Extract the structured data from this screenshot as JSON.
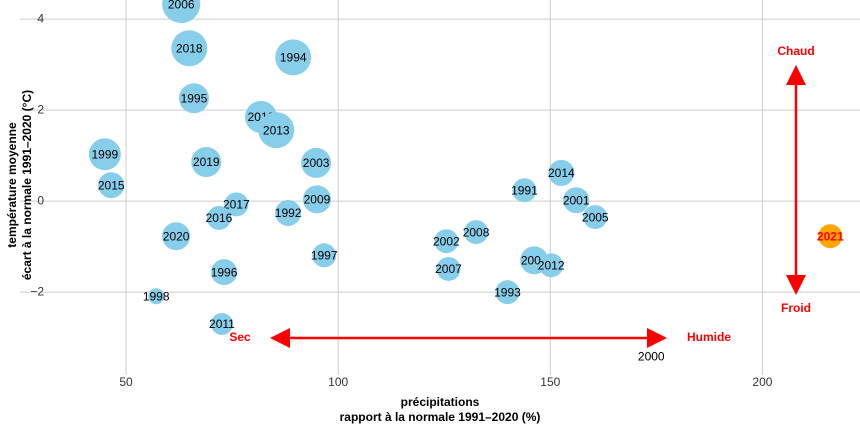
{
  "chart_data": {
    "type": "scatter",
    "x_label": [
      "précipitations",
      "rapport à la normale 1991–2020 (%)"
    ],
    "y_label": [
      "température moyenne",
      "écart à la normale 1991–2020 (°C)"
    ],
    "xlim": [
      25,
      223
    ],
    "ylim": [
      -3.82,
      4.42
    ],
    "xticks": [
      50,
      100,
      150,
      200
    ],
    "yticks": [
      {
        "value": -2,
        "label": "−2"
      },
      0,
      2,
      4
    ],
    "grid": true,
    "series": [
      {
        "color": "#87ceeb",
        "label_color": "#000000",
        "labels": [
          "2006",
          "2018",
          "1994",
          "1995",
          "2010",
          "2013",
          "1999",
          "2019",
          "2003",
          "2015",
          "2017",
          "2016",
          "2009",
          "1992",
          "2020",
          "1997",
          "1996",
          "1998",
          "2011",
          "1991",
          "2014",
          "2001",
          "2005",
          "2002",
          "2008",
          "2007",
          "2004",
          "2012",
          "1993",
          "2000"
        ],
        "x": [
          63,
          64.9,
          89.4,
          66,
          81.8,
          85.4,
          45,
          68.9,
          94.8,
          46.5,
          76,
          71.9,
          95,
          88.2,
          61.8,
          96.7,
          73.1,
          57.1,
          72.6,
          143.9,
          152.6,
          156.1,
          160.6,
          125.5,
          132.5,
          126,
          146.2,
          150.2,
          139.9,
          173.8
        ],
        "values": [
          4.33,
          3.36,
          3.16,
          2.26,
          1.85,
          1.56,
          1.03,
          0.86,
          0.84,
          0.35,
          -0.07,
          -0.37,
          0.04,
          -0.26,
          -0.77,
          -1.19,
          -1.56,
          -2.09,
          -2.7,
          0.24,
          0.62,
          0.02,
          -0.35,
          -0.88,
          -0.68,
          -1.49,
          -1.3,
          -1.41,
          -2.0,
          -3.41
        ],
        "sizes": [
          19,
          18,
          18,
          15,
          16,
          18,
          16,
          15,
          15,
          13,
          12,
          12,
          14,
          13,
          14,
          12,
          13,
          8,
          11,
          12,
          13,
          13,
          12,
          12,
          12,
          12,
          14,
          12,
          12,
          1
        ]
      },
      {
        "color": "#ffa500",
        "label_color": "#ff0000",
        "labels": [
          "2021"
        ],
        "x": [
          216
        ],
        "values": [
          -0.77
        ],
        "sizes": [
          12
        ]
      }
    ],
    "annotations": [
      "Chaud",
      "Froid",
      "Sec",
      "Humide"
    ]
  }
}
